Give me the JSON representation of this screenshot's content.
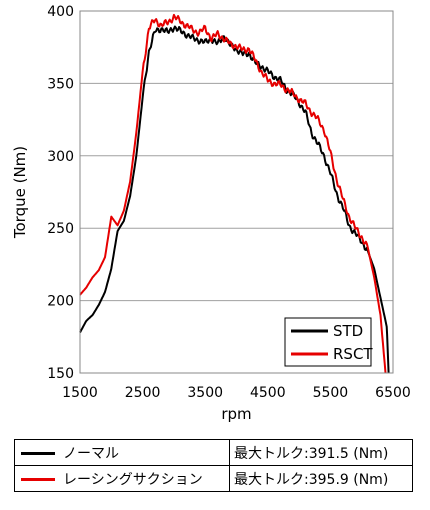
{
  "chart_data": {
    "type": "line",
    "xlabel": "rpm",
    "ylabel": "Torque (Nm)",
    "xlim": [
      1500,
      6500
    ],
    "ylim": [
      150,
      400
    ],
    "x_ticks": [
      "1500",
      "2500",
      "3500",
      "4500",
      "5500",
      "6500"
    ],
    "y_ticks": [
      "150",
      "200",
      "250",
      "300",
      "350",
      "400"
    ],
    "grid": "horizontal",
    "legend_position": "bottom-right",
    "series": [
      {
        "name": "STD",
        "color": "#000000",
        "points": [
          [
            1500,
            178
          ],
          [
            1600,
            186
          ],
          [
            1700,
            190
          ],
          [
            1800,
            197
          ],
          [
            1900,
            206
          ],
          [
            2000,
            222
          ],
          [
            2100,
            248
          ],
          [
            2200,
            255
          ],
          [
            2300,
            272
          ],
          [
            2400,
            300
          ],
          [
            2500,
            340
          ],
          [
            2600,
            372
          ],
          [
            2700,
            386
          ],
          [
            2800,
            388
          ],
          [
            2900,
            385
          ],
          [
            3000,
            389
          ],
          [
            3100,
            386
          ],
          [
            3200,
            384
          ],
          [
            3300,
            381
          ],
          [
            3400,
            380
          ],
          [
            3500,
            378
          ],
          [
            3600,
            381
          ],
          [
            3700,
            377
          ],
          [
            3800,
            383
          ],
          [
            3900,
            376
          ],
          [
            4000,
            374
          ],
          [
            4100,
            370
          ],
          [
            4200,
            371
          ],
          [
            4300,
            364
          ],
          [
            4400,
            362
          ],
          [
            4500,
            358
          ],
          [
            4600,
            355
          ],
          [
            4700,
            352
          ],
          [
            4800,
            346
          ],
          [
            4900,
            342
          ],
          [
            5000,
            337
          ],
          [
            5100,
            330
          ],
          [
            5200,
            316
          ],
          [
            5300,
            308
          ],
          [
            5400,
            300
          ],
          [
            5500,
            288
          ],
          [
            5600,
            274
          ],
          [
            5700,
            264
          ],
          [
            5800,
            252
          ],
          [
            5900,
            246
          ],
          [
            6000,
            241
          ],
          [
            6100,
            234
          ],
          [
            6200,
            222
          ],
          [
            6300,
            202
          ],
          [
            6400,
            182
          ],
          [
            6430,
            150
          ]
        ]
      },
      {
        "name": "RSCT",
        "color": "#e60000",
        "points": [
          [
            1500,
            204
          ],
          [
            1600,
            209
          ],
          [
            1700,
            216
          ],
          [
            1800,
            221
          ],
          [
            1900,
            230
          ],
          [
            2000,
            258
          ],
          [
            2100,
            252
          ],
          [
            2200,
            262
          ],
          [
            2300,
            282
          ],
          [
            2400,
            316
          ],
          [
            2500,
            358
          ],
          [
            2600,
            388
          ],
          [
            2700,
            394
          ],
          [
            2800,
            390
          ],
          [
            2900,
            392
          ],
          [
            3000,
            396
          ],
          [
            3100,
            393
          ],
          [
            3200,
            390
          ],
          [
            3300,
            387
          ],
          [
            3400,
            385
          ],
          [
            3500,
            388
          ],
          [
            3600,
            381
          ],
          [
            3700,
            384
          ],
          [
            3800,
            381
          ],
          [
            3900,
            377
          ],
          [
            4000,
            376
          ],
          [
            4100,
            373
          ],
          [
            4200,
            374
          ],
          [
            4300,
            366
          ],
          [
            4400,
            358
          ],
          [
            4500,
            352
          ],
          [
            4600,
            350
          ],
          [
            4700,
            349
          ],
          [
            4800,
            346
          ],
          [
            4900,
            343
          ],
          [
            5000,
            339
          ],
          [
            5100,
            336
          ],
          [
            5200,
            330
          ],
          [
            5300,
            325
          ],
          [
            5400,
            318
          ],
          [
            5500,
            302
          ],
          [
            5600,
            284
          ],
          [
            5700,
            270
          ],
          [
            5800,
            258
          ],
          [
            5900,
            250
          ],
          [
            6000,
            244
          ],
          [
            6100,
            236
          ],
          [
            6200,
            216
          ],
          [
            6300,
            190
          ],
          [
            6380,
            150
          ]
        ]
      }
    ]
  },
  "summary_table": {
    "rows": [
      {
        "name": "ノーマル",
        "value": "最大トルク:391.5 (Nm)",
        "color": "#000000"
      },
      {
        "name": "レーシングサクション",
        "value": "最大トルク:395.9 (Nm)",
        "color": "#e60000"
      }
    ]
  }
}
